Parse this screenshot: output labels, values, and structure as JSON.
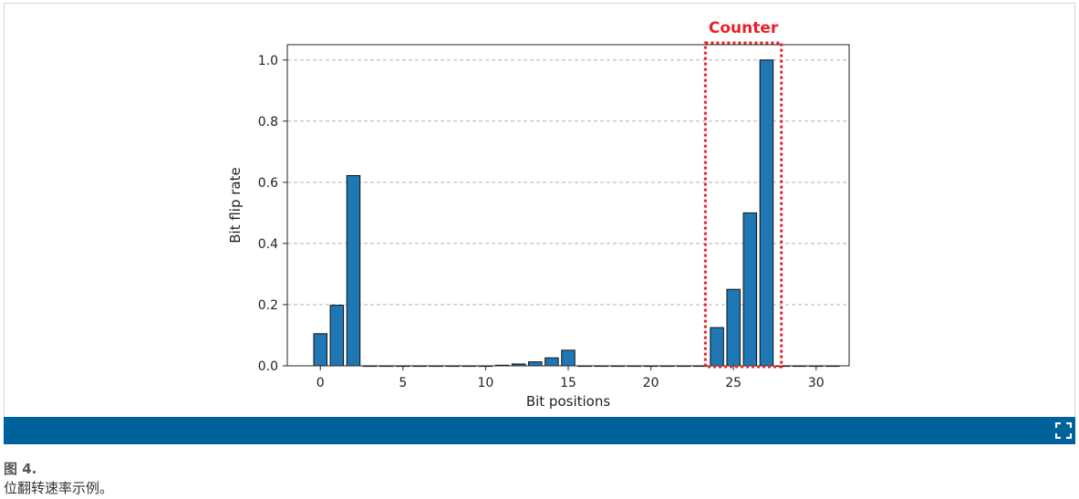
{
  "chart_data": {
    "type": "bar",
    "xlabel": "Bit positions",
    "ylabel": "Bit flip rate",
    "x_ticks": [
      0,
      5,
      10,
      15,
      20,
      25,
      30
    ],
    "y_ticks": [
      "0.0",
      "0.2",
      "0.4",
      "0.6",
      "0.8",
      "1.0"
    ],
    "xlim": [
      -2,
      32
    ],
    "ylim": [
      0,
      1.05
    ],
    "grid": "y-dashed",
    "bar_color": "#1f77b4",
    "x": [
      0,
      1,
      2,
      3,
      4,
      5,
      6,
      7,
      8,
      9,
      10,
      11,
      12,
      13,
      14,
      15,
      16,
      17,
      18,
      19,
      20,
      21,
      22,
      23,
      24,
      25,
      26,
      27,
      28,
      29,
      30,
      31
    ],
    "values": [
      0.105,
      0.198,
      0.622,
      0,
      0,
      0,
      0,
      0,
      0,
      0,
      0,
      0.002,
      0.006,
      0.013,
      0.026,
      0.051,
      0,
      0,
      0,
      0,
      0,
      0,
      0,
      0,
      0.125,
      0.25,
      0.5,
      1.0,
      0,
      0,
      0,
      0
    ],
    "annotation": {
      "label": "Counter",
      "x_range": [
        23.3,
        27.9
      ],
      "color": "#e8202a"
    }
  },
  "caption": {
    "label": "图 4.",
    "text": "位翻转速率示例。"
  },
  "toolbar": {
    "color": "#00629b",
    "expand_icon": "expand-icon"
  }
}
